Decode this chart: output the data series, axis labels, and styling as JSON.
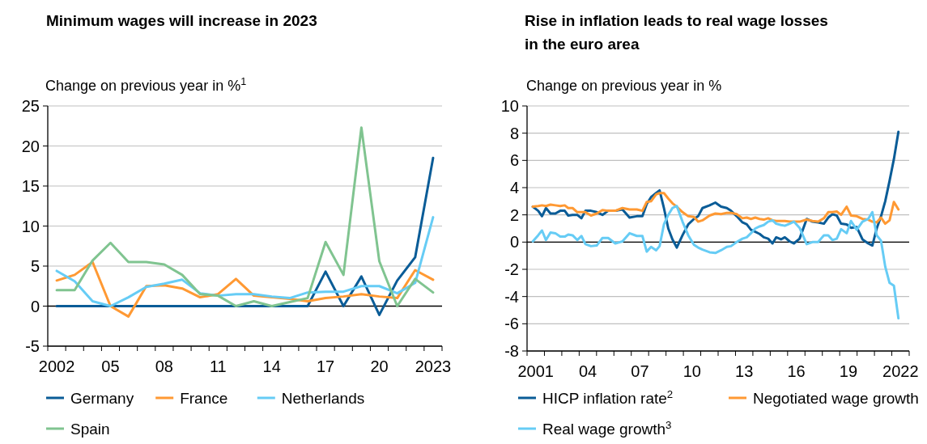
{
  "chart_data": [
    {
      "type": "line",
      "title": "Minimum wages will increase in 2023",
      "ylabel": "Change on previous year in %$^{1}$",
      "categories": [
        "2002",
        null,
        null,
        "05",
        null,
        null,
        "08",
        null,
        null,
        "11",
        null,
        null,
        "14",
        null,
        null,
        "17",
        null,
        null,
        "20",
        null,
        null,
        "2023"
      ],
      "series": [
        {
          "name": "Germany",
          "color": "#0a5c97",
          "values": [
            0,
            0,
            0,
            0,
            0,
            0,
            0,
            0,
            0,
            0,
            0,
            0,
            0,
            0,
            0,
            4.3,
            0,
            3.7,
            -1.1,
            3.2,
            6.1,
            18.5
          ]
        },
        {
          "name": "France",
          "color": "#ff9933",
          "values": [
            3.2,
            3.9,
            5.5,
            0,
            -1.3,
            2.5,
            2.6,
            2.2,
            1.1,
            1.5,
            3.4,
            1.3,
            1.1,
            0.9,
            0.6,
            1.0,
            1.2,
            1.5,
            1.2,
            1.0,
            4.5,
            3.3
          ]
        },
        {
          "name": "Netherlands",
          "color": "#66ccf5",
          "values": [
            4.4,
            3.1,
            0.6,
            0,
            1.1,
            2.4,
            2.8,
            3.3,
            1.6,
            1.3,
            1.5,
            1.5,
            1.2,
            1.0,
            1.7,
            1.8,
            1.8,
            2.5,
            2.5,
            1.6,
            2.9,
            11.1
          ]
        },
        {
          "name": "Spain",
          "color": "#80c490",
          "values": [
            2.0,
            2.0,
            5.7,
            7.9,
            5.5,
            5.5,
            5.2,
            3.9,
            1.5,
            1.3,
            0,
            0.6,
            0,
            0.5,
            1.0,
            8.0,
            3.9,
            22.3,
            5.6,
            0,
            3.4,
            1.7
          ]
        }
      ],
      "ylim": [
        -5,
        25
      ],
      "yticks": [
        -5,
        0,
        5,
        10,
        15,
        20,
        25
      ],
      "grid": "y",
      "legend": "bottom",
      "ref_lines": [
        {
          "axis": "y",
          "value": 0,
          "color": "#000000"
        }
      ]
    },
    {
      "type": "line",
      "title": "Rise in inflation leads to real wage losses in the euro area",
      "ylabel": "Change on previous year in %",
      "x": [
        2000.83,
        2001.14,
        2001.36,
        2001.59,
        2001.85,
        2002.13,
        2002.41,
        2002.67,
        2002.87,
        2003.12,
        2003.39,
        2003.63,
        2003.86,
        2004.18,
        2004.51,
        2004.84,
        2005.17,
        2005.58,
        2005.99,
        2006.4,
        2006.82,
        2007.14,
        2007.39,
        2007.64,
        2007.93,
        2008.13,
        2008.38,
        2008.63,
        2008.87,
        2009.12,
        2009.45,
        2009.78,
        2010.11,
        2010.35,
        2010.6,
        2011.01,
        2011.34,
        2011.67,
        2012.0,
        2012.24,
        2012.57,
        2012.9,
        2013.15,
        2013.39,
        2013.64,
        2013.89,
        2014.13,
        2014.38,
        2014.63,
        2014.84,
        2015.12,
        2015.34,
        2015.62,
        2015.86,
        2016.19,
        2016.6,
        2016.93,
        2017.26,
        2017.59,
        2017.84,
        2018.08,
        2018.33,
        2018.58,
        2018.9,
        2019.15,
        2019.48,
        2019.81,
        2020.14,
        2020.38,
        2020.63,
        2020.88,
        2021.12,
        2021.37,
        2021.62,
        2021.88
      ],
      "series": [
        {
          "name": "HICP inflation rate$^{2}$",
          "color": "#0a5c97",
          "values": [
            2.6,
            2.3,
            1.9,
            2.5,
            2.1,
            2.1,
            2.3,
            2.3,
            1.95,
            2.0,
            2.0,
            1.75,
            2.3,
            2.3,
            2.2,
            2.0,
            2.3,
            2.3,
            2.4,
            1.8,
            1.9,
            1.9,
            2.8,
            3.3,
            3.6,
            3.8,
            2.5,
            1.0,
            0.2,
            -0.4,
            0.5,
            1.3,
            1.7,
            1.9,
            2.5,
            2.7,
            2.9,
            2.6,
            2.5,
            2.3,
            1.9,
            1.45,
            1.3,
            0.9,
            0.75,
            0.6,
            0.35,
            0.25,
            -0.1,
            0.35,
            0.2,
            0.35,
            0.05,
            -0.1,
            0.25,
            1.7,
            1.5,
            1.45,
            1.35,
            1.8,
            2.05,
            1.95,
            1.35,
            1.3,
            1.05,
            1.1,
            0.2,
            -0.1,
            -0.25,
            1.0,
            1.9,
            3.0,
            4.5,
            6.1,
            8.1
          ]
        },
        {
          "name": "Negotiated wage growth",
          "color": "#ff9933",
          "values": [
            2.6,
            2.65,
            2.7,
            2.65,
            2.75,
            2.7,
            2.65,
            2.7,
            2.5,
            2.5,
            2.2,
            2.2,
            2.2,
            1.95,
            2.1,
            2.35,
            2.3,
            2.3,
            2.5,
            2.4,
            2.4,
            2.3,
            2.95,
            3.0,
            3.5,
            3.6,
            3.6,
            3.2,
            2.85,
            2.6,
            2.2,
            1.9,
            1.85,
            1.5,
            1.6,
            1.95,
            2.1,
            2.05,
            2.15,
            2.15,
            2.05,
            1.75,
            1.8,
            1.7,
            1.8,
            1.7,
            1.65,
            1.75,
            1.6,
            1.55,
            1.55,
            1.55,
            1.5,
            1.5,
            1.5,
            1.65,
            1.55,
            1.5,
            1.75,
            2.2,
            2.2,
            2.25,
            2.0,
            2.6,
            1.95,
            1.9,
            1.7,
            1.65,
            1.5,
            1.45,
            1.8,
            1.35,
            1.6,
            2.95,
            2.4
          ]
        },
        {
          "name": "Real wage growth$^{3}$",
          "color": "#66ccf5",
          "values": [
            0.05,
            0.5,
            0.85,
            0.15,
            0.7,
            0.65,
            0.4,
            0.4,
            0.55,
            0.5,
            0.15,
            0.45,
            -0.15,
            -0.3,
            -0.25,
            0.3,
            0.3,
            -0.1,
            0.05,
            0.65,
            0.45,
            0.45,
            -0.7,
            -0.35,
            -0.6,
            -0.3,
            1.3,
            2.0,
            2.5,
            2.65,
            1.5,
            0.5,
            -0.2,
            -0.4,
            -0.55,
            -0.75,
            -0.8,
            -0.6,
            -0.35,
            -0.3,
            0.0,
            0.25,
            0.35,
            0.65,
            1.0,
            1.15,
            1.25,
            1.5,
            1.6,
            1.35,
            1.25,
            1.2,
            1.35,
            1.5,
            1.05,
            -0.15,
            0.0,
            0.0,
            0.5,
            0.5,
            0.15,
            0.25,
            0.95,
            0.65,
            1.55,
            0.9,
            1.5,
            1.7,
            2.2,
            0.5,
            0.1,
            -1.8,
            -3.0,
            -3.2,
            -5.6
          ]
        }
      ],
      "xlim": [
        2000.5,
        2022.5
      ],
      "xticks": [
        {
          "value": 2000.5,
          "label": null
        },
        {
          "value": 2001.5,
          "label": null
        },
        {
          "value": 2002.5,
          "label": null
        },
        {
          "value": 2003.5,
          "label": null
        },
        {
          "value": 2004.5,
          "label": null
        },
        {
          "value": 2005.5,
          "label": null
        },
        {
          "value": 2006.5,
          "label": null
        },
        {
          "value": 2007.5,
          "label": null
        },
        {
          "value": 2008.5,
          "label": null
        },
        {
          "value": 2009.5,
          "label": null
        },
        {
          "value": 2010.5,
          "label": null
        },
        {
          "value": 2011.5,
          "label": null
        },
        {
          "value": 2012.5,
          "label": null
        },
        {
          "value": 2013.5,
          "label": null
        },
        {
          "value": 2014.5,
          "label": null
        },
        {
          "value": 2015.5,
          "label": null
        },
        {
          "value": 2016.5,
          "label": null
        },
        {
          "value": 2017.5,
          "label": null
        },
        {
          "value": 2018.5,
          "label": null
        },
        {
          "value": 2019.5,
          "label": null
        },
        {
          "value": 2020.5,
          "label": null
        },
        {
          "value": 2021.5,
          "label": null
        },
        {
          "value": 2022.5,
          "label": null
        },
        {
          "value": 2001,
          "label": "2001"
        },
        {
          "value": 2004,
          "label": "04"
        },
        {
          "value": 2007,
          "label": "07"
        },
        {
          "value": 2010,
          "label": "10"
        },
        {
          "value": 2013,
          "label": "13"
        },
        {
          "value": 2016,
          "label": "16"
        },
        {
          "value": 2019,
          "label": "19"
        },
        {
          "value": 2022,
          "label": "2022"
        }
      ],
      "ylim": [
        -8,
        10
      ],
      "yticks": [
        -8,
        -6,
        -4,
        -2,
        0,
        2,
        4,
        6,
        8,
        10
      ],
      "grid": "y",
      "legend": "bottom",
      "ref_lines": [
        {
          "axis": "y",
          "value": 0,
          "color": "#000000"
        }
      ]
    }
  ]
}
